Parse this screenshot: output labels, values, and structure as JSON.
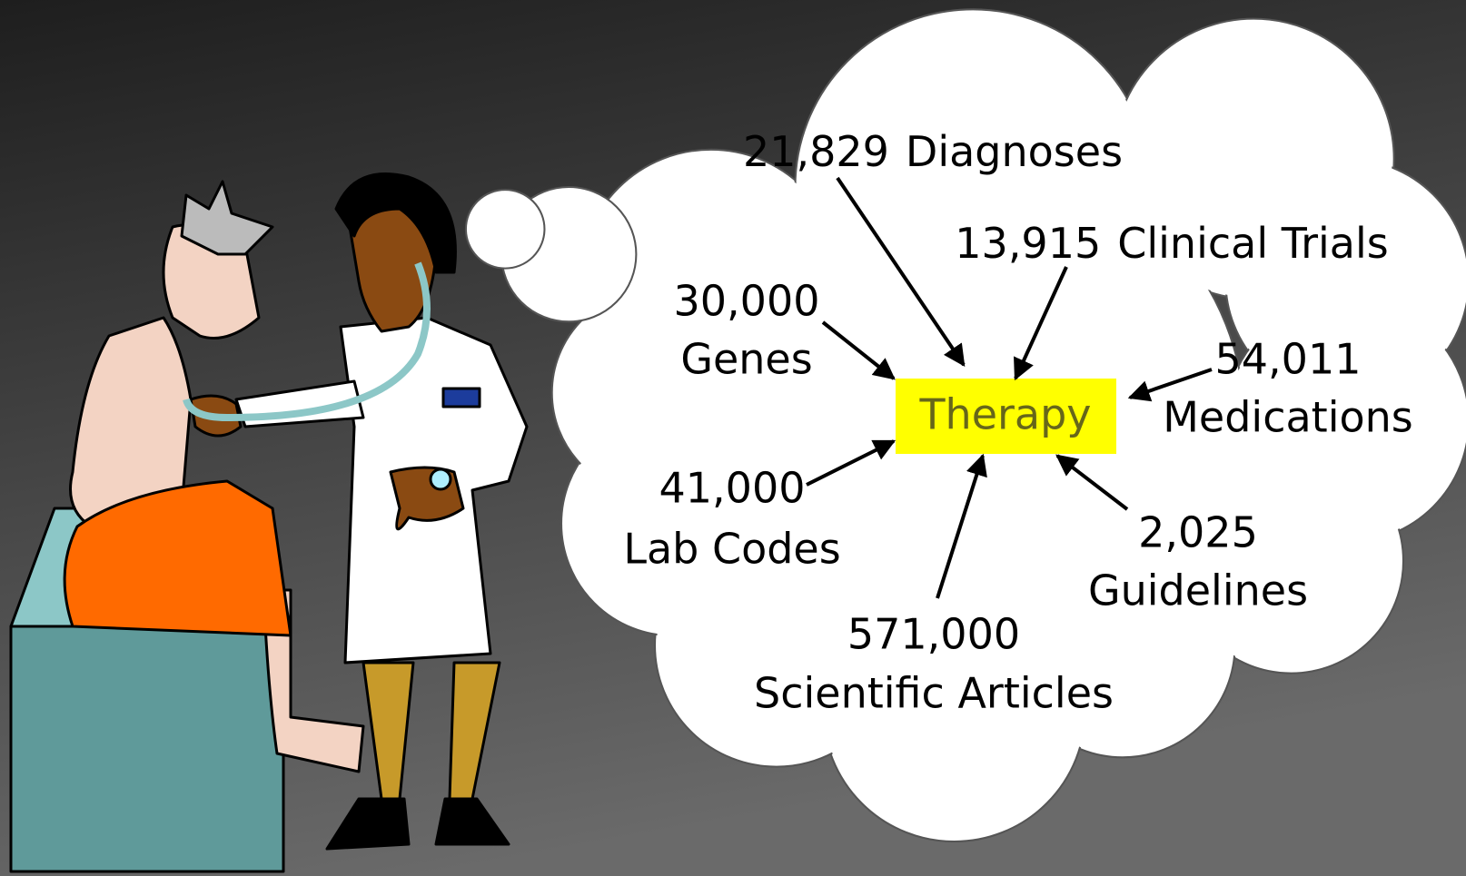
{
  "center": {
    "label": "Therapy"
  },
  "sources": [
    {
      "count": "21,829",
      "label": "Diagnoses"
    },
    {
      "count": "13,915",
      "label": "Clinical Trials"
    },
    {
      "count": "30,000",
      "label": "Genes"
    },
    {
      "count": "54,011",
      "label": "Medications"
    },
    {
      "count": "41,000",
      "label": "Lab Codes"
    },
    {
      "count": "2,025",
      "label": "Guidelines"
    },
    {
      "count": "571,000",
      "label": "Scientific Articles"
    }
  ]
}
